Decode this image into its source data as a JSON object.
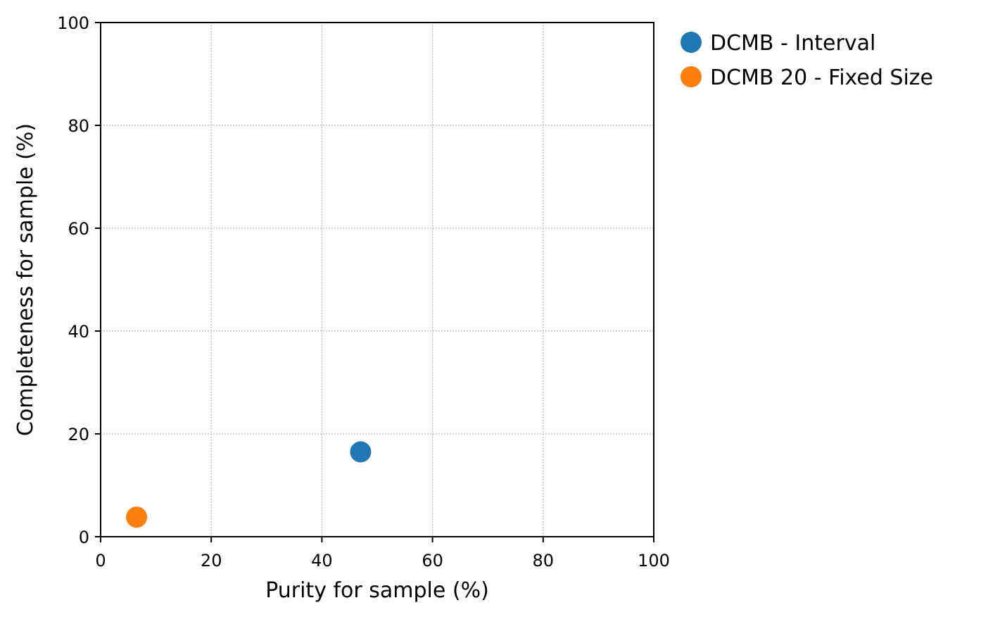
{
  "chart_data": {
    "type": "scatter",
    "title": "",
    "xlabel": "Purity for sample (%)",
    "ylabel": "Completeness for sample (%)",
    "xlim": [
      0,
      100
    ],
    "ylim": [
      0,
      100
    ],
    "xticks": [
      "0",
      "20",
      "40",
      "60",
      "80",
      "100"
    ],
    "yticks": [
      "0",
      "20",
      "40",
      "60",
      "80",
      "100"
    ],
    "grid": true,
    "legend_position": "outside-top-right",
    "series": [
      {
        "name": "DCMB - Interval",
        "color": "#1f77b4",
        "points": [
          {
            "x": 47,
            "y": 16.5
          }
        ]
      },
      {
        "name": "DCMB 20 - Fixed Size",
        "color": "#ff7f0e",
        "points": [
          {
            "x": 6.5,
            "y": 3.8
          }
        ]
      }
    ]
  }
}
